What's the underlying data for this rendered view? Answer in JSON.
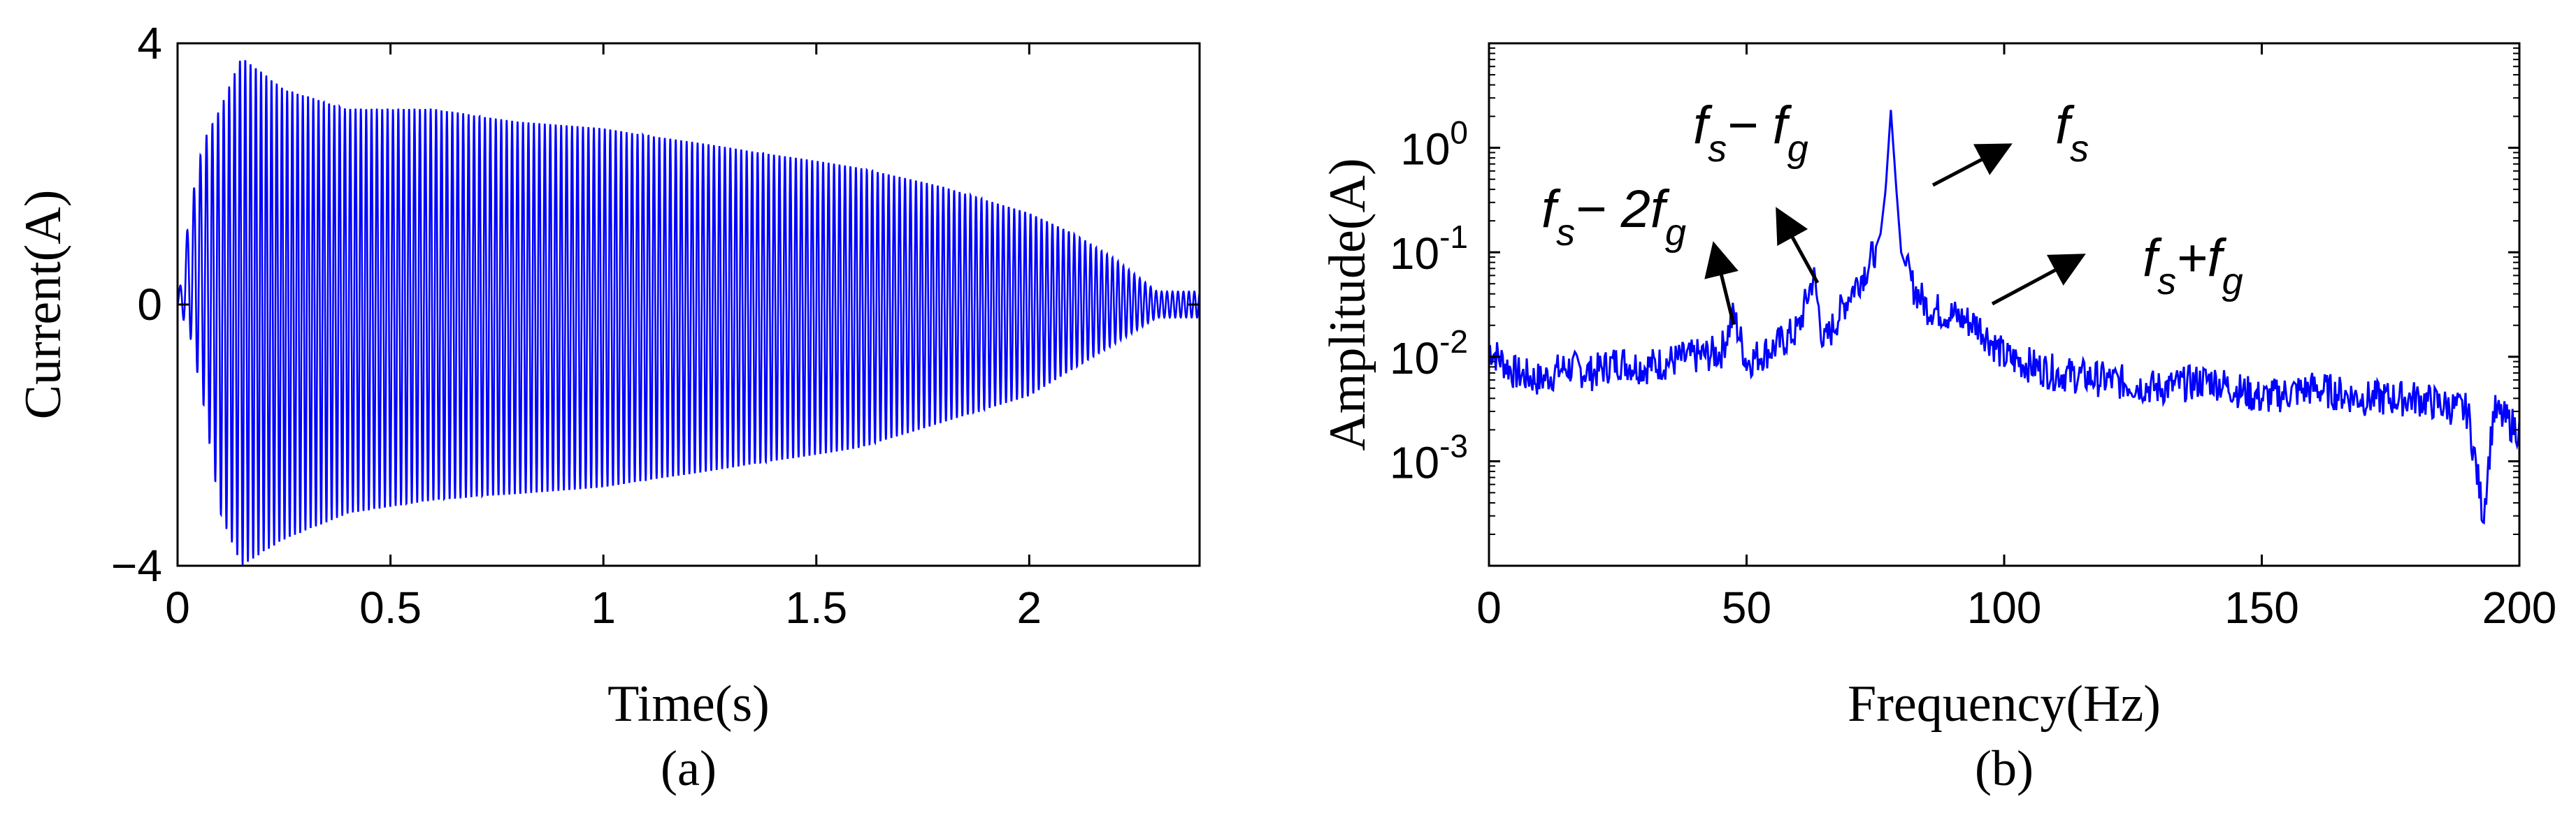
{
  "colors": {
    "series": "#0000ff",
    "axes": "#000000",
    "arrows": "#000000"
  },
  "chart_data": [
    {
      "id": "a",
      "type": "line",
      "panel_label": "(a)",
      "xlabel": "Time(s)",
      "ylabel": "Current(A)",
      "xlim": [
        0,
        2.4
      ],
      "ylim": [
        -4,
        4
      ],
      "xticks": [
        0,
        0.5,
        1,
        1.5,
        2
      ],
      "xtick_labels": [
        "0",
        "0.5",
        "1",
        "1.5",
        "2"
      ],
      "yticks": [
        -4,
        0,
        4
      ],
      "ytick_labels": [
        "−4",
        "0",
        "4"
      ],
      "grid": false,
      "series": [
        {
          "style": "oscillating current with decaying envelope",
          "carrier_frequency_hz": 78,
          "envelope": {
            "t": [
              0,
              0.03,
              0.06,
              0.1,
              0.15,
              0.25,
              0.4,
              0.6,
              0.8,
              1.0,
              1.2,
              1.4,
              1.6,
              1.8,
              2.0,
              2.1,
              2.2,
              2.3,
              2.4
            ],
            "upper": [
              0,
              1.5,
              2.5,
              3.0,
              3.8,
              3.3,
              3.0,
              3.0,
              2.8,
              2.7,
              2.5,
              2.3,
              2.1,
              1.8,
              1.4,
              1.1,
              0.7,
              0.2,
              0.2
            ],
            "lower": [
              0,
              -0.5,
              -1.5,
              -3.2,
              -4.0,
              -3.6,
              -3.2,
              -3.0,
              -2.9,
              -2.8,
              -2.6,
              -2.4,
              -2.2,
              -1.8,
              -1.4,
              -1.0,
              -0.6,
              -0.2,
              -0.2
            ]
          }
        }
      ]
    },
    {
      "id": "b",
      "type": "line",
      "panel_label": "(b)",
      "xlabel": "Frequency(Hz)",
      "ylabel": "Amplitude(A)",
      "xlim": [
        0,
        200
      ],
      "ylim_log10": [
        -4,
        1
      ],
      "y_scale": "log",
      "xticks": [
        0,
        50,
        100,
        150,
        200
      ],
      "xtick_labels": [
        "0",
        "50",
        "100",
        "150",
        "200"
      ],
      "yticks_log10": [
        -3,
        -2,
        -1,
        0
      ],
      "ytick_labels": [
        {
          "base": "10",
          "exp": "-3"
        },
        {
          "base": "10",
          "exp": "-2"
        },
        {
          "base": "10",
          "exp": "-1"
        },
        {
          "base": "10",
          "exp": "0"
        }
      ],
      "grid": false,
      "series": [
        {
          "style": "noisy amplitude spectrum",
          "x": [
            0,
            5,
            10,
            15,
            20,
            25,
            30,
            35,
            40,
            45,
            47.5,
            50,
            55,
            60,
            63,
            65,
            70,
            74,
            76,
            77,
            78,
            79,
            80,
            82,
            85,
            90,
            95,
            100,
            110,
            120,
            130,
            140,
            150,
            160,
            170,
            180,
            190,
            193,
            195,
            200
          ],
          "y": [
            0.012,
            0.007,
            0.006,
            0.008,
            0.007,
            0.009,
            0.008,
            0.009,
            0.01,
            0.011,
            0.025,
            0.009,
            0.012,
            0.018,
            0.06,
            0.013,
            0.04,
            0.08,
            0.15,
            0.4,
            2.3,
            0.45,
            0.1,
            0.05,
            0.03,
            0.025,
            0.02,
            0.01,
            0.007,
            0.006,
            0.005,
            0.006,
            0.004,
            0.005,
            0.004,
            0.004,
            0.003,
            0.0003,
            0.003,
            0.002
          ]
        }
      ],
      "annotations": [
        {
          "base": "f",
          "sub1": "s",
          "op": "− 2",
          "base2": "f",
          "sub2": "g",
          "points_to_hz": 47.5
        },
        {
          "base": "f",
          "sub1": "s",
          "op": "− ",
          "base2": "f",
          "sub2": "g",
          "points_to_hz": 63
        },
        {
          "base": "f",
          "sub1": "s",
          "op": "",
          "base2": "",
          "sub2": "",
          "points_to_hz": 78
        },
        {
          "base": "f",
          "sub1": "s",
          "op": "+",
          "base2": "f",
          "sub2": "g",
          "points_to_hz": 94
        }
      ]
    }
  ]
}
